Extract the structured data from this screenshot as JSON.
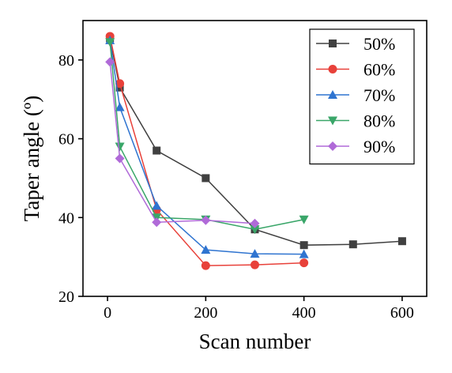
{
  "chart_data": {
    "type": "line",
    "title": "",
    "xlabel": "Scan number",
    "ylabel": "Taper angle (º)",
    "xlim": [
      -50,
      650
    ],
    "ylim": [
      20,
      90
    ],
    "xticks": [
      0,
      200,
      400,
      600
    ],
    "yticks": [
      20,
      40,
      60,
      80
    ],
    "grid": false,
    "legend_position": "top-right",
    "series": [
      {
        "name": "50%",
        "color": "#404040",
        "marker": "square",
        "x": [
          5,
          25,
          100,
          200,
          300,
          400,
          500,
          600
        ],
        "y": [
          85.5,
          73,
          57,
          50,
          37,
          33,
          33.2,
          34
        ]
      },
      {
        "name": "60%",
        "color": "#e8413a",
        "marker": "circle",
        "x": [
          5,
          25,
          100,
          200,
          300,
          400
        ],
        "y": [
          86,
          74,
          42,
          27.8,
          28,
          28.5
        ]
      },
      {
        "name": "70%",
        "color": "#2f74d0",
        "marker": "triangle-up",
        "x": [
          5,
          25,
          100,
          200,
          300,
          400
        ],
        "y": [
          85,
          68,
          43,
          31.8,
          30.8,
          30.7
        ]
      },
      {
        "name": "80%",
        "color": "#3aa669",
        "marker": "triangle-down",
        "x": [
          5,
          25,
          100,
          200,
          300,
          400
        ],
        "y": [
          84.5,
          58,
          40,
          39.5,
          37,
          39.5
        ]
      },
      {
        "name": "90%",
        "color": "#b06ad8",
        "marker": "diamond",
        "x": [
          5,
          25,
          100,
          200,
          300
        ],
        "y": [
          79.5,
          55,
          38.8,
          39.3,
          38.5
        ]
      }
    ]
  }
}
